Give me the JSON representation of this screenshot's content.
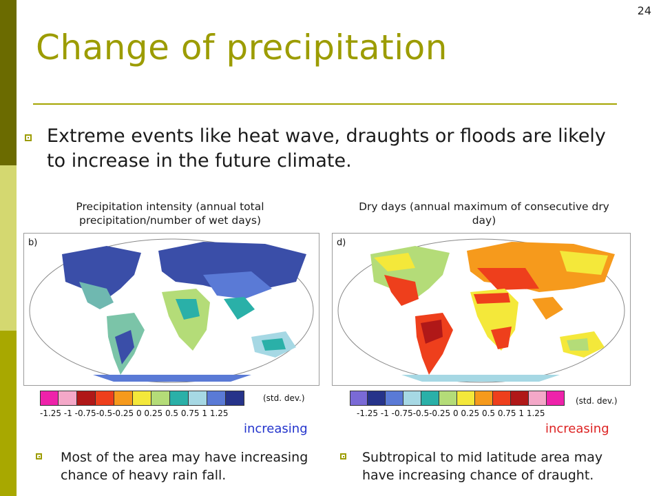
{
  "slide": {
    "page_number": "24",
    "title": "Change of precipitation",
    "main_bullet": "Extreme events like heat wave, draughts or floods are likely to increase in the future climate."
  },
  "left_panel": {
    "caption": "Precipitation intensity (annual total precipitation/number of wet days)",
    "map_label": "b)",
    "colorbar_colors": [
      "#ee22aa",
      "#f4a8c8",
      "#b01818",
      "#ee3f1c",
      "#f69a1c",
      "#f4e83a",
      "#b4dc78",
      "#2ab0a8",
      "#a6d8e4",
      "#5a7ad6",
      "#26338a"
    ],
    "tick_labels": "-1.25  -1  -0.75-0.5-0.25  0  0.25 0.5 0.75  1  1.25",
    "units": "(std. dev.)",
    "direction_label": "increasing",
    "direction_color": "#2233cc",
    "note": "Most of the area may have increasing chance of heavy rain fall."
  },
  "right_panel": {
    "caption": "Dry days (annual maximum of consecutive dry day)",
    "map_label": "d)",
    "colorbar_colors": [
      "#7a6ad6",
      "#26338a",
      "#5a7ad6",
      "#a6d8e4",
      "#2ab0a8",
      "#b4dc78",
      "#f4e83a",
      "#f69a1c",
      "#ee3f1c",
      "#b01818",
      "#f4a8c8",
      "#ee22aa"
    ],
    "tick_labels": "-1.25  -1  -0.75-0.5-0.25  0  0.25 0.5 0.75  1  1.25",
    "units": "(std. dev.)",
    "direction_label": "increasing",
    "direction_color": "#dd2222",
    "note": "Subtropical to mid latitude area may have increasing chance of draught."
  },
  "colors": {
    "title": "#9c9c00",
    "sidebar_dark": "#6b6b00",
    "sidebar_light": "#d4d870",
    "sidebar_mid": "#a8a800"
  }
}
